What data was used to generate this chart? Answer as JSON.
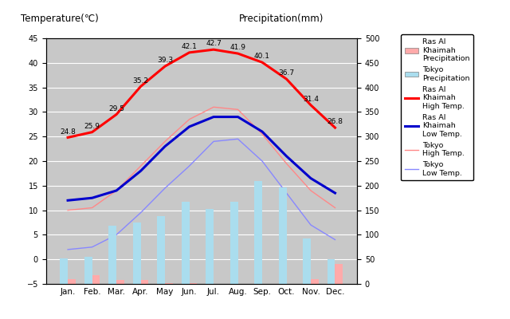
{
  "months": [
    "Jan.",
    "Feb.",
    "Mar.",
    "Apr.",
    "May",
    "Jun.",
    "Jul.",
    "Aug.",
    "Sep.",
    "Oct.",
    "Nov.",
    "Dec."
  ],
  "rak_high": [
    24.8,
    25.9,
    29.5,
    35.2,
    39.3,
    42.1,
    42.7,
    41.9,
    40.1,
    36.7,
    31.4,
    26.8
  ],
  "rak_low": [
    12.0,
    12.5,
    14.0,
    18.0,
    23.0,
    27.0,
    29.0,
    29.0,
    26.0,
    21.0,
    16.5,
    13.5
  ],
  "tokyo_high": [
    10.0,
    10.5,
    14.0,
    19.0,
    24.0,
    28.5,
    31.0,
    30.5,
    25.5,
    19.5,
    14.0,
    10.5
  ],
  "tokyo_low": [
    2.0,
    2.5,
    5.0,
    9.5,
    14.5,
    19.0,
    24.0,
    24.5,
    20.0,
    13.5,
    7.0,
    4.0
  ],
  "rak_precip_mm": [
    10,
    18,
    8,
    8,
    2,
    2,
    0.5,
    0.5,
    0,
    0,
    10,
    40
  ],
  "tokyo_precip_mm": [
    52,
    56,
    118,
    125,
    138,
    168,
    153,
    168,
    210,
    197,
    93,
    51
  ],
  "temp_ylim": [
    -5,
    45
  ],
  "precip_ylim": [
    0,
    500
  ],
  "bg_color": "#c8c8c8",
  "rak_high_color": "#ff0000",
  "rak_low_color": "#0000cc",
  "tokyo_high_color": "#ff8888",
  "tokyo_low_color": "#8888ff",
  "rak_precip_color": "#ffaaaa",
  "tokyo_precip_color": "#aaddee",
  "title_left": "Temperature(℃)",
  "title_right": "Precipitation(mm)",
  "yticks_temp": [
    -5,
    0,
    5,
    10,
    15,
    20,
    25,
    30,
    35,
    40,
    45
  ],
  "yticks_precip": [
    0,
    50,
    100,
    150,
    200,
    250,
    300,
    350,
    400,
    450,
    500
  ]
}
